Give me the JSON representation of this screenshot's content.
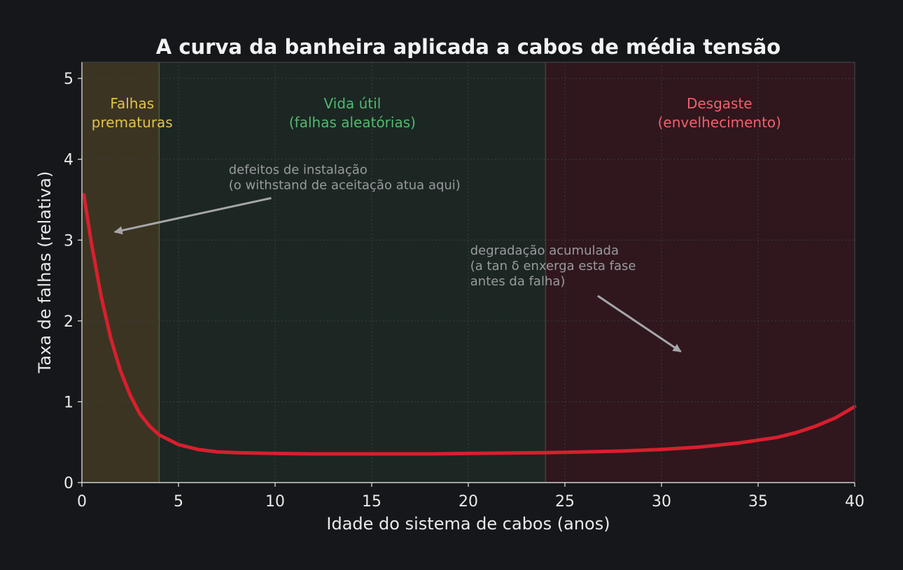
{
  "chart_data": {
    "type": "line",
    "title": "A curva da banheira aplicada a cabos de média tensão",
    "xlabel": "Idade do sistema de cabos (anos)",
    "ylabel": "Taxa de falhas (relativa)",
    "xlim": [
      0,
      40
    ],
    "ylim": [
      0,
      5.2
    ],
    "xticks": [
      0,
      5,
      10,
      15,
      20,
      25,
      30,
      35,
      40
    ],
    "yticks": [
      0,
      1,
      2,
      3,
      4,
      5
    ],
    "grid": true,
    "series": [
      {
        "color": "#d81f2e",
        "x": [
          0.1,
          0.5,
          1,
          1.5,
          2,
          2.5,
          3,
          3.5,
          4,
          5,
          6,
          7,
          8,
          10,
          12,
          15,
          18,
          20,
          22,
          24,
          26,
          28,
          30,
          32,
          34,
          36,
          37,
          38,
          39,
          40
        ],
        "y": [
          3.56,
          2.95,
          2.3,
          1.78,
          1.38,
          1.08,
          0.85,
          0.7,
          0.59,
          0.47,
          0.41,
          0.38,
          0.37,
          0.36,
          0.355,
          0.355,
          0.355,
          0.36,
          0.365,
          0.37,
          0.38,
          0.39,
          0.41,
          0.44,
          0.49,
          0.56,
          0.62,
          0.7,
          0.8,
          0.94
        ]
      }
    ],
    "regions": [
      {
        "x0": 0,
        "x1": 4,
        "label_lines": [
          "Falhas",
          "prematuras"
        ],
        "label_x": 2.6,
        "fill": "#3b3422",
        "text_color": "#e2c14e"
      },
      {
        "x0": 4,
        "x1": 24,
        "label_lines": [
          "Vida útil",
          "(falhas aleatórias)"
        ],
        "label_x": 14,
        "fill": "#1c2723",
        "text_color": "#52b96e"
      },
      {
        "x0": 24,
        "x1": 40,
        "label_lines": [
          "Desgaste",
          "(envelhecimento)"
        ],
        "label_x": 33,
        "fill": "#2f171d",
        "text_color": "#f0606c"
      }
    ],
    "annotations": [
      {
        "text_lines": [
          "defeitos de instalação",
          "(o withstand de aceitação atua aqui)"
        ],
        "text_x": 7.6,
        "text_y": 3.82,
        "arrow_from": [
          9.8,
          3.52
        ],
        "arrow_to": [
          1.7,
          3.1
        ]
      },
      {
        "text_lines": [
          "degradação acumulada",
          "(a tan δ enxerga esta fase",
          "antes da falha)"
        ],
        "text_x": 20.1,
        "text_y": 2.82,
        "arrow_from": [
          26.7,
          2.31
        ],
        "arrow_to": [
          31.0,
          1.62
        ]
      }
    ],
    "colors": {
      "background": "#15171a",
      "text": "#eaeaea",
      "annotation": "#9a9a9e",
      "arrow": "#a6a6aa",
      "grid": "#3a3d42"
    }
  }
}
